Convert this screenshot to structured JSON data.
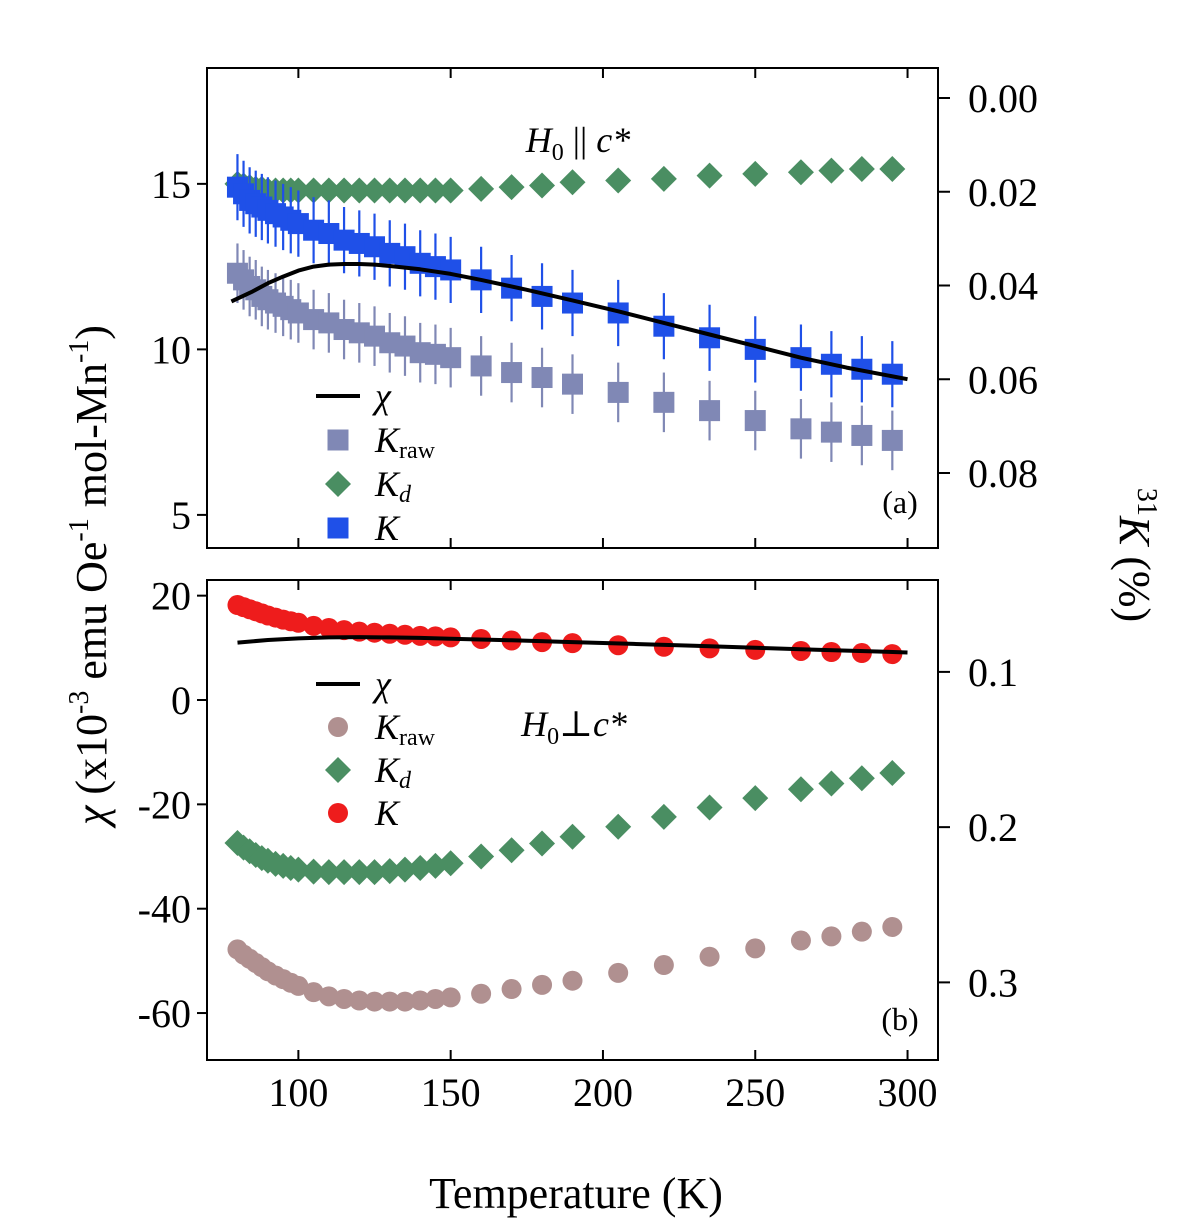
{
  "chart_data": [
    {
      "panel": "a",
      "type": "scatter",
      "label": "(a)",
      "title_parts": {
        "H": "H",
        "sub0": "0",
        "rel": " || ",
        "c": "c*"
      },
      "xlim": [
        70,
        310
      ],
      "ylim_left": [
        4,
        18.5
      ],
      "ylim_right_percent": [
        0.096,
        -0.0064
      ],
      "xticks": [
        100,
        150,
        200,
        250,
        300
      ],
      "xtick_labels": [
        "100",
        "150",
        "200",
        "250",
        "300"
      ],
      "yticks_left": [
        5,
        10,
        15
      ],
      "ytick_labels_left": [
        "5",
        "10",
        "15"
      ],
      "yticks_right": [
        0.0,
        0.02,
        0.04,
        0.06,
        0.08
      ],
      "ytick_labels_right": [
        "0.00",
        "0.02",
        "0.04",
        "0.06",
        "0.08"
      ],
      "legend": [
        {
          "key": "chi",
          "symbol": "line",
          "name": "χ",
          "sub": ""
        },
        {
          "key": "kraw",
          "symbol": "square",
          "name": "K",
          "sub": "raw"
        },
        {
          "key": "kd",
          "symbol": "diamond",
          "name": "K",
          "sub": "d"
        },
        {
          "key": "k",
          "symbol": "square",
          "name": "K",
          "sub": ""
        }
      ],
      "legend_position": "bottom-left",
      "x": [
        80,
        82,
        84,
        86,
        88,
        90,
        92.5,
        95,
        97.5,
        100,
        105,
        110,
        115,
        120,
        125,
        130,
        135,
        140,
        145,
        150,
        160,
        170,
        180,
        190,
        205,
        220,
        235,
        250,
        265,
        275,
        285,
        295
      ],
      "series": [
        {
          "name": "K_raw",
          "key": "kraw",
          "color": "#8088b5",
          "marker": "square",
          "err": 0.9,
          "values": [
            12.3,
            12.1,
            11.9,
            11.8,
            11.6,
            11.5,
            11.4,
            11.3,
            11.2,
            11.1,
            10.9,
            10.8,
            10.6,
            10.5,
            10.4,
            10.2,
            10.1,
            9.9,
            9.85,
            9.75,
            9.5,
            9.3,
            9.15,
            8.95,
            8.7,
            8.4,
            8.15,
            7.85,
            7.6,
            7.5,
            7.4,
            7.25
          ]
        },
        {
          "name": "K_d",
          "key": "kd",
          "color": "#4a8e62",
          "marker": "diamond",
          "values": [
            15.0,
            14.95,
            14.9,
            14.85,
            14.85,
            14.8,
            14.8,
            14.8,
            14.8,
            14.8,
            14.8,
            14.8,
            14.8,
            14.8,
            14.8,
            14.8,
            14.8,
            14.8,
            14.8,
            14.8,
            14.85,
            14.9,
            14.95,
            15.05,
            15.1,
            15.15,
            15.25,
            15.3,
            15.35,
            15.4,
            15.45,
            15.45
          ]
        },
        {
          "name": "K",
          "key": "k",
          "color": "#1f50e8",
          "marker": "square",
          "err": 1.0,
          "values": [
            14.9,
            14.7,
            14.5,
            14.4,
            14.3,
            14.2,
            14.1,
            14.0,
            13.9,
            13.8,
            13.6,
            13.5,
            13.3,
            13.2,
            13.1,
            12.9,
            12.8,
            12.6,
            12.5,
            12.4,
            12.1,
            11.85,
            11.6,
            11.4,
            11.1,
            10.7,
            10.35,
            10.0,
            9.75,
            9.55,
            9.4,
            9.25
          ]
        }
      ],
      "line": {
        "name": "χ",
        "key": "chi",
        "color": "#000000",
        "x": [
          78,
          85,
          90,
          95,
          100,
          105,
          110,
          115,
          120,
          125,
          130,
          140,
          150,
          160,
          175,
          190,
          205,
          220,
          235,
          250,
          265,
          280,
          300
        ],
        "values": [
          11.45,
          11.75,
          12.0,
          12.2,
          12.38,
          12.5,
          12.56,
          12.58,
          12.58,
          12.56,
          12.52,
          12.42,
          12.28,
          12.1,
          11.8,
          11.48,
          11.15,
          10.8,
          10.45,
          10.1,
          9.75,
          9.45,
          9.1
        ]
      }
    },
    {
      "panel": "b",
      "type": "scatter",
      "label": "(b)",
      "title_parts": {
        "H": "H",
        "sub0": "0",
        "rel": "⊥",
        "c": "c*"
      },
      "xlim": [
        70,
        310
      ],
      "ylim_left": [
        -69,
        23
      ],
      "ylim_right_percent": [
        0.35,
        0.0408
      ],
      "xticks": [
        100,
        150,
        200,
        250,
        300
      ],
      "xtick_labels": [
        "100",
        "150",
        "200",
        "250",
        "300"
      ],
      "yticks_left": [
        -60,
        -40,
        -20,
        0,
        20
      ],
      "ytick_labels_left": [
        "-60",
        "-40",
        "-20",
        "0",
        "20"
      ],
      "yticks_right": [
        0.1,
        0.2,
        0.3
      ],
      "ytick_labels_right": [
        "0.1",
        "0.2",
        "0.3"
      ],
      "legend": [
        {
          "key": "chi",
          "symbol": "line",
          "name": "χ",
          "sub": ""
        },
        {
          "key": "kraw",
          "symbol": "circle",
          "name": "K",
          "sub": "raw"
        },
        {
          "key": "kd",
          "symbol": "diamond",
          "name": "K",
          "sub": "d"
        },
        {
          "key": "k",
          "symbol": "circle",
          "name": "K",
          "sub": ""
        }
      ],
      "legend_position": "center-left",
      "x": [
        80,
        82,
        84,
        86,
        88,
        90,
        92.5,
        95,
        97.5,
        100,
        105,
        110,
        115,
        120,
        125,
        130,
        135,
        140,
        145,
        150,
        160,
        170,
        180,
        190,
        205,
        220,
        235,
        250,
        265,
        275,
        285,
        295
      ],
      "series": [
        {
          "name": "K_raw",
          "key": "kraw",
          "color": "#b09090",
          "marker": "circle",
          "values": [
            -47.8,
            -48.8,
            -49.6,
            -50.4,
            -51.2,
            -52.0,
            -52.8,
            -53.5,
            -54.2,
            -54.8,
            -56.0,
            -56.8,
            -57.3,
            -57.6,
            -57.8,
            -57.8,
            -57.8,
            -57.6,
            -57.3,
            -57.0,
            -56.3,
            -55.4,
            -54.6,
            -53.8,
            -52.3,
            -50.8,
            -49.2,
            -47.6,
            -46.1,
            -45.3,
            -44.4,
            -43.5
          ]
        },
        {
          "name": "K_d",
          "key": "kd",
          "color": "#4a8e62",
          "marker": "diamond",
          "values": [
            -27.4,
            -28.3,
            -29.0,
            -29.7,
            -30.3,
            -30.8,
            -31.4,
            -31.8,
            -32.2,
            -32.5,
            -32.9,
            -33.0,
            -33.0,
            -33.0,
            -33.0,
            -32.8,
            -32.5,
            -32.2,
            -31.8,
            -31.3,
            -30.0,
            -28.8,
            -27.5,
            -26.2,
            -24.3,
            -22.4,
            -20.6,
            -18.8,
            -17.1,
            -16.0,
            -15.0,
            -14.0
          ]
        },
        {
          "name": "K",
          "key": "k",
          "color": "#ee1c1c",
          "marker": "circle",
          "values": [
            18.2,
            17.8,
            17.4,
            17.0,
            16.6,
            16.2,
            15.8,
            15.4,
            15.1,
            14.8,
            14.2,
            13.8,
            13.4,
            13.1,
            12.9,
            12.7,
            12.5,
            12.3,
            12.2,
            12.0,
            11.7,
            11.4,
            11.1,
            10.9,
            10.5,
            10.2,
            9.9,
            9.6,
            9.4,
            9.2,
            9.0,
            8.8
          ]
        }
      ],
      "line": {
        "name": "χ",
        "key": "chi",
        "color": "#000000",
        "x": [
          80,
          90,
          100,
          110,
          120,
          130,
          140,
          150,
          170,
          190,
          210,
          230,
          250,
          270,
          290,
          300
        ],
        "values": [
          11.0,
          11.5,
          11.8,
          12.0,
          12.05,
          12.0,
          11.9,
          11.75,
          11.45,
          11.1,
          10.75,
          10.4,
          10.0,
          9.65,
          9.3,
          9.1
        ]
      }
    }
  ],
  "axes_text": {
    "xlabel": "Temperature (K)",
    "ylabel_left": {
      "sym": "χ",
      "a": " (x10",
      "exp1": "-3",
      "b": " emu Oe",
      "exp2": "-1",
      "c": " mol-Mn",
      "exp3": "-1",
      "d": ")"
    },
    "ylabel_right": {
      "sup": "31",
      "k": "K",
      "unit": " (%)"
    }
  }
}
